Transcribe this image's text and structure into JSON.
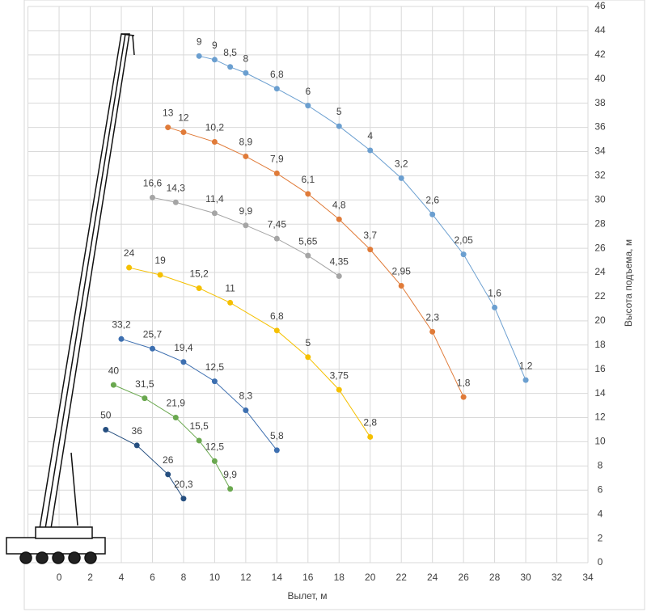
{
  "chart_data": {
    "type": "scatter-line",
    "x_label": "Вылет, м",
    "y_label": "Высота подъема, м",
    "xlim": [
      -2,
      34
    ],
    "xticks": [
      0,
      2,
      4,
      6,
      8,
      10,
      12,
      14,
      16,
      18,
      20,
      22,
      24,
      26,
      28,
      30,
      32,
      34
    ],
    "ylim": [
      0,
      46
    ],
    "yticks": [
      0,
      2,
      4,
      6,
      8,
      10,
      12,
      14,
      16,
      18,
      20,
      22,
      24,
      26,
      28,
      30,
      32,
      34,
      36,
      38,
      40,
      42,
      44,
      46
    ],
    "grid": true,
    "y_axis_side": "right",
    "series": [
      {
        "color": "#6b9fd0",
        "x": [
          9,
          10,
          11,
          12,
          14,
          16,
          18,
          20,
          22,
          24,
          26,
          28,
          30
        ],
        "values": [
          41.9,
          41.6,
          41.0,
          40.5,
          39.2,
          37.8,
          36.1,
          34.1,
          31.8,
          28.8,
          25.5,
          21.1,
          15.1
        ],
        "value_labels": [
          "9",
          "9",
          "8,5",
          "8",
          "6,8",
          "6",
          "5",
          "4",
          "3,2",
          "2,6",
          "2,05",
          "1,6",
          "1,2"
        ]
      },
      {
        "color": "#e07b39",
        "x": [
          7,
          8,
          10,
          12,
          14,
          16,
          18,
          20,
          22,
          24,
          26
        ],
        "values": [
          36.0,
          35.6,
          34.8,
          33.6,
          32.2,
          30.5,
          28.4,
          25.9,
          22.9,
          19.1,
          13.7
        ],
        "value_labels": [
          "13",
          "12",
          "10,2",
          "8,9",
          "7,9",
          "6,1",
          "4,8",
          "3,7",
          "2,95",
          "2,3",
          "1,8"
        ]
      },
      {
        "color": "#a5a5a5",
        "x": [
          6,
          7.5,
          10,
          12,
          14,
          16,
          18
        ],
        "values": [
          30.2,
          29.8,
          28.9,
          27.9,
          26.8,
          25.4,
          23.7
        ],
        "value_labels": [
          "16,6",
          "14,3",
          "11,4",
          "9,9",
          "7,45",
          "5,65",
          "4,35"
        ]
      },
      {
        "color": "#f5c000",
        "x": [
          4.5,
          6.5,
          9,
          11,
          14,
          16,
          18,
          20
        ],
        "values": [
          24.4,
          23.8,
          22.7,
          21.5,
          19.2,
          17.0,
          14.3,
          10.4
        ],
        "value_labels": [
          "24",
          "19",
          "15,2",
          "11",
          "6,8",
          "5",
          "3,75",
          "2,8"
        ]
      },
      {
        "color": "#3d6fb0",
        "x": [
          4,
          6,
          8,
          10,
          12,
          14
        ],
        "values": [
          18.5,
          17.7,
          16.6,
          15.0,
          12.6,
          9.3
        ],
        "value_labels": [
          "33,2",
          "25,7",
          "19,4",
          "12,5",
          "8,3",
          "5,8"
        ]
      },
      {
        "color": "#6aa84f",
        "x": [
          3.5,
          5.5,
          7.5,
          9,
          10,
          11
        ],
        "values": [
          14.7,
          13.6,
          12.0,
          10.1,
          8.4,
          6.1
        ],
        "value_labels": [
          "40",
          "31,5",
          "21,9",
          "15,5",
          "12,5",
          "9,9"
        ]
      },
      {
        "color": "#264f80",
        "x": [
          3,
          5,
          7,
          8
        ],
        "values": [
          11.0,
          9.7,
          7.3,
          5.3
        ],
        "value_labels": [
          "50",
          "36",
          "26",
          "20,3"
        ]
      }
    ]
  }
}
